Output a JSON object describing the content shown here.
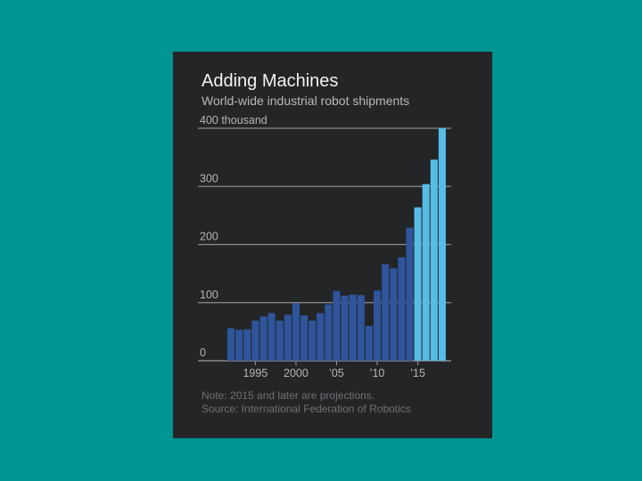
{
  "chart_data": {
    "type": "bar",
    "title": "Adding Machines",
    "subtitle": "World-wide industrial robot shipments",
    "y_unit_label": "400 thousand",
    "x": [
      1992,
      1993,
      1994,
      1995,
      1996,
      1997,
      1998,
      1999,
      2000,
      2001,
      2002,
      2003,
      2004,
      2005,
      2006,
      2007,
      2008,
      2009,
      2010,
      2011,
      2012,
      2013,
      2014,
      2015,
      2016,
      2017,
      2018
    ],
    "values": [
      56,
      53,
      54,
      69,
      76,
      82,
      69,
      79,
      99,
      78,
      69,
      82,
      97,
      120,
      112,
      114,
      113,
      60,
      121,
      166,
      159,
      178,
      229,
      264,
      304,
      346,
      400
    ],
    "series": [
      {
        "name": "",
        "years": "1992-2014",
        "color": "#2f559b"
      },
      {
        "name": "",
        "years": "2015-2018",
        "color": "#57bde6",
        "projection": true
      }
    ],
    "ylim": [
      0,
      400
    ],
    "yticks": [
      0,
      100,
      200,
      300,
      400
    ],
    "ytick_labels": [
      "0",
      "100",
      "200",
      "300",
      "400 thousand"
    ],
    "xticks": [
      1995,
      2000,
      2005,
      2010,
      2015
    ],
    "xtick_labels": [
      "1995",
      "2000",
      "’05",
      "’10",
      "’15"
    ],
    "grid": true,
    "legend": "none",
    "note": "Note: 2015 and later are projections.",
    "source": "Source: International Federation of Robotics"
  },
  "colors": {
    "page_background": "#009492",
    "card_background": "#232527",
    "actual_bar": "#2f559b",
    "projection_bar": "#57bde6",
    "gridline": "#8c8f92"
  }
}
